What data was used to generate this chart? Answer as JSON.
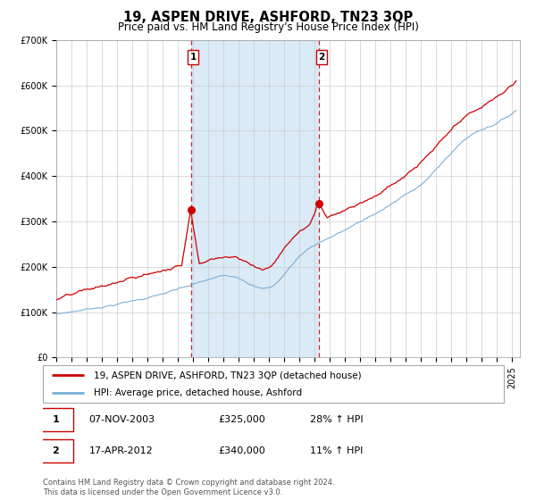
{
  "title": "19, ASPEN DRIVE, ASHFORD, TN23 3QP",
  "subtitle": "Price paid vs. HM Land Registry's House Price Index (HPI)",
  "ylim": [
    0,
    700000
  ],
  "xlim_start": 1995.0,
  "xlim_end": 2025.5,
  "yticks": [
    0,
    100000,
    200000,
    300000,
    400000,
    500000,
    600000,
    700000
  ],
  "ytick_labels": [
    "£0",
    "£100K",
    "£200K",
    "£300K",
    "£400K",
    "£500K",
    "£600K",
    "£700K"
  ],
  "shaded_region_color": "#daeaf7",
  "line1_color": "#cc0000",
  "line2_color": "#7bafd4",
  "marker_color": "#cc0000",
  "sale1_x": 2003.854,
  "sale1_y": 325000,
  "sale2_x": 2012.29,
  "sale2_y": 340000,
  "vline_color": "#cc0000",
  "legend_label1": "19, ASPEN DRIVE, ASHFORD, TN23 3QP (detached house)",
  "legend_label2": "HPI: Average price, detached house, Ashford",
  "table_row1": [
    "1",
    "07-NOV-2003",
    "£325,000",
    "28% ↑ HPI"
  ],
  "table_row2": [
    "2",
    "17-APR-2012",
    "£340,000",
    "11% ↑ HPI"
  ],
  "footer": "Contains HM Land Registry data © Crown copyright and database right 2024.\nThis data is licensed under the Open Government Licence v3.0.",
  "title_fontsize": 10.5,
  "subtitle_fontsize": 8.5,
  "tick_fontsize": 7,
  "legend_fontsize": 7.5,
  "footer_fontsize": 6
}
